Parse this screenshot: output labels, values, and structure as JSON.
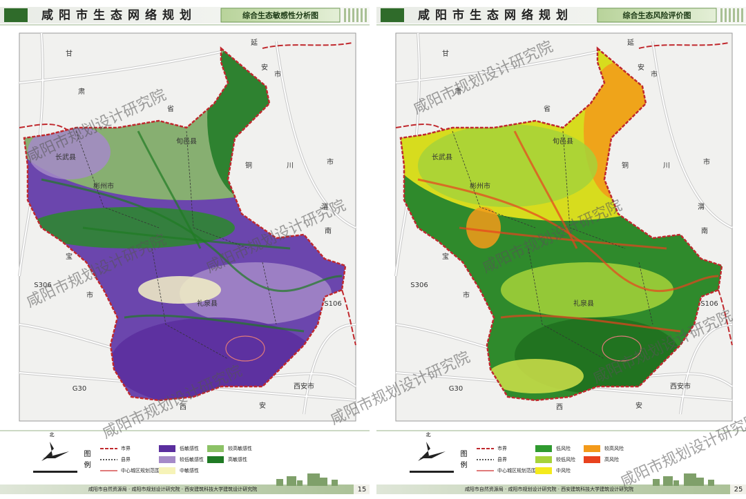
{
  "watermark": "咸阳市规划设计研究院",
  "pages": [
    {
      "header": {
        "title": "咸阳市生态网络规划",
        "subtitle": "综合生态敏感性分析图"
      },
      "map": {
        "labels": [
          "甘",
          "肃",
          "省",
          "延",
          "安",
          "市",
          "铜",
          "川",
          "市",
          "渭",
          "南",
          "宝",
          "市",
          "长武县",
          "彬州市",
          "旬邑县",
          "礼泉县",
          "西安市",
          "西",
          "安",
          "G30",
          "S306",
          "S106"
        ]
      },
      "legend": {
        "north": "北",
        "title": "图例",
        "items": [
          {
            "label": "市界",
            "symbol": "line",
            "color": "#c0282d"
          },
          {
            "label": "县界",
            "symbol": "line",
            "color": "#555555"
          },
          {
            "label": "中心城区规划范围",
            "symbol": "line",
            "color": "#e07a7a"
          },
          {
            "label": "低敏感性",
            "symbol": "fill",
            "color": "#5a2e9e"
          },
          {
            "label": "较低敏感性",
            "symbol": "fill",
            "color": "#a58ac8"
          },
          {
            "label": "中敏感性",
            "symbol": "fill",
            "color": "#f6f3b8"
          },
          {
            "label": "较高敏感性",
            "symbol": "fill",
            "color": "#8cc266"
          },
          {
            "label": "高敏感性",
            "symbol": "fill",
            "color": "#1f7a24"
          }
        ]
      },
      "footer": {
        "credits": "咸阳市自然资源局 · 咸阳市规划设计研究院 · 西安建筑科技大学建筑设计研究院",
        "page": "15"
      }
    },
    {
      "header": {
        "title": "咸阳市生态网络规划",
        "subtitle": "综合生态风险评价图"
      },
      "map": {
        "labels": [
          "甘",
          "肃",
          "省",
          "延",
          "安",
          "市",
          "铜",
          "川",
          "市",
          "渭",
          "南",
          "宝",
          "市",
          "长武县",
          "彬州市",
          "旬邑县",
          "礼泉县",
          "西安市",
          "西",
          "安",
          "G30",
          "S306",
          "S106"
        ]
      },
      "legend": {
        "north": "北",
        "title": "图例",
        "items": [
          {
            "label": "市界",
            "symbol": "line",
            "color": "#c0282d"
          },
          {
            "label": "县界",
            "symbol": "line",
            "color": "#555555"
          },
          {
            "label": "中心城区规划范围",
            "symbol": "line",
            "color": "#e07a7a"
          },
          {
            "label": "低风险",
            "symbol": "fill",
            "color": "#2f9a2f"
          },
          {
            "label": "较低风险",
            "symbol": "fill",
            "color": "#a6d23a"
          },
          {
            "label": "中风险",
            "symbol": "fill",
            "color": "#f4ea1c"
          },
          {
            "label": "较高风险",
            "symbol": "fill",
            "color": "#f39a1a"
          },
          {
            "label": "高风险",
            "symbol": "fill",
            "color": "#e8421e"
          }
        ]
      },
      "footer": {
        "credits": "咸阳市自然资源局 · 咸阳市规划设计研究院 · 西安建筑科技大学建筑设计研究院",
        "page": "25"
      }
    }
  ]
}
